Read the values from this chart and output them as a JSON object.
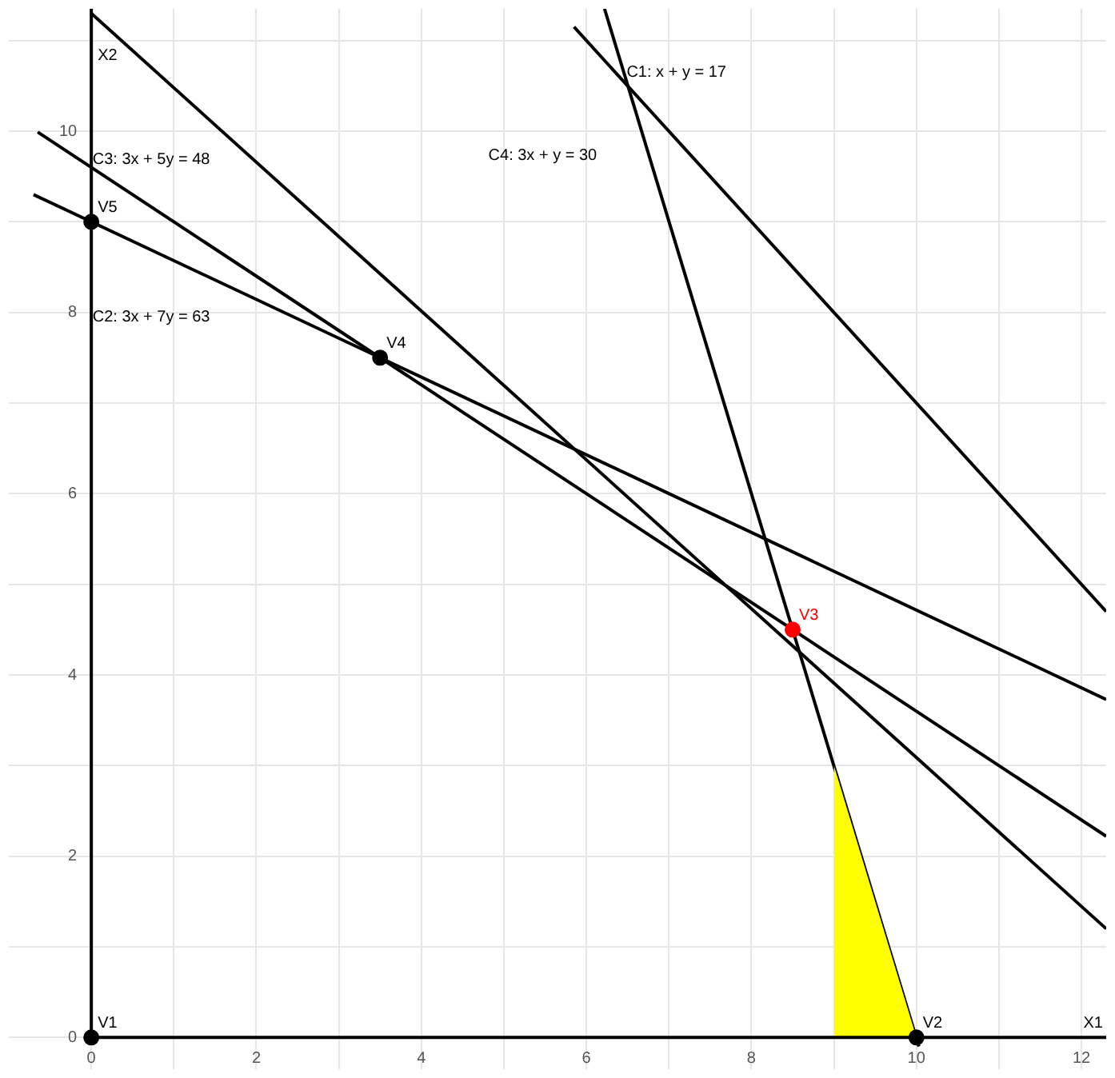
{
  "chart_data": {
    "type": "line",
    "xlabel": "X1",
    "ylabel": "X2",
    "xlim": [
      -1,
      12.3
    ],
    "ylim": [
      -0.35,
      11.35
    ],
    "xticks": [
      0,
      {
        "value": 1,
        "label": null
      },
      2,
      {
        "value": 3,
        "label": null
      },
      4,
      {
        "value": 5,
        "label": null
      },
      6,
      {
        "value": 7,
        "label": null
      },
      8,
      {
        "value": 9,
        "label": null
      },
      10,
      {
        "value": 11,
        "label": null
      },
      12
    ],
    "yticks": [
      0,
      {
        "value": 1,
        "label": null
      },
      2,
      {
        "value": 3,
        "label": null
      },
      4,
      {
        "value": 5,
        "label": null
      },
      6,
      {
        "value": 7,
        "label": null
      },
      8,
      {
        "value": 9,
        "label": null
      },
      10,
      {
        "value": 11,
        "label": null
      }
    ],
    "grid": true,
    "legend": false,
    "line_style": "solid",
    "series": [
      {
        "type": "area",
        "color": "#ffff00",
        "x": [
          9,
          10
        ],
        "values": [
          3,
          0
        ]
      },
      {
        "color": "#000000",
        "x": [
          6.22,
          10.03
        ],
        "values": [
          11.35,
          -0.1
        ]
      },
      {
        "color": "#000000",
        "x": [
          5.85,
          12.3
        ],
        "values": [
          11.15,
          4.7
        ]
      },
      {
        "color": "#000000",
        "x": [
          -0.7,
          12.3
        ],
        "values": [
          9.3,
          3.73
        ]
      },
      {
        "color": "#000000",
        "x": [
          -0.65,
          12.3
        ],
        "values": [
          9.99,
          2.22
        ]
      },
      {
        "color": "#000000",
        "x": [
          0,
          12.3
        ],
        "values": [
          11.3,
          1.2
        ]
      },
      {
        "type": "scatter",
        "marker": "circle",
        "name": "V1",
        "color": "#000000",
        "x": [
          0
        ],
        "values": [
          0
        ]
      },
      {
        "type": "scatter",
        "marker": "circle",
        "name": "V2",
        "color": "#000000",
        "x": [
          10
        ],
        "values": [
          0
        ]
      },
      {
        "type": "scatter",
        "marker": "circle",
        "name": "V3",
        "color": "#ff0000",
        "x": [
          8.5
        ],
        "values": [
          4.5
        ]
      },
      {
        "type": "scatter",
        "marker": "circle",
        "name": "V4",
        "color": "#000000",
        "x": [
          3.5
        ],
        "values": [
          7.5
        ]
      },
      {
        "type": "scatter",
        "marker": "circle",
        "name": "V5",
        "color": "#000000",
        "x": [
          0
        ],
        "values": [
          9
        ]
      }
    ],
    "annotations": [
      "C1: x + y = 17",
      "C4: 3x + y = 30",
      "C3: 3x + 5y = 48",
      "C2: 3x + 7y = 63"
    ]
  }
}
